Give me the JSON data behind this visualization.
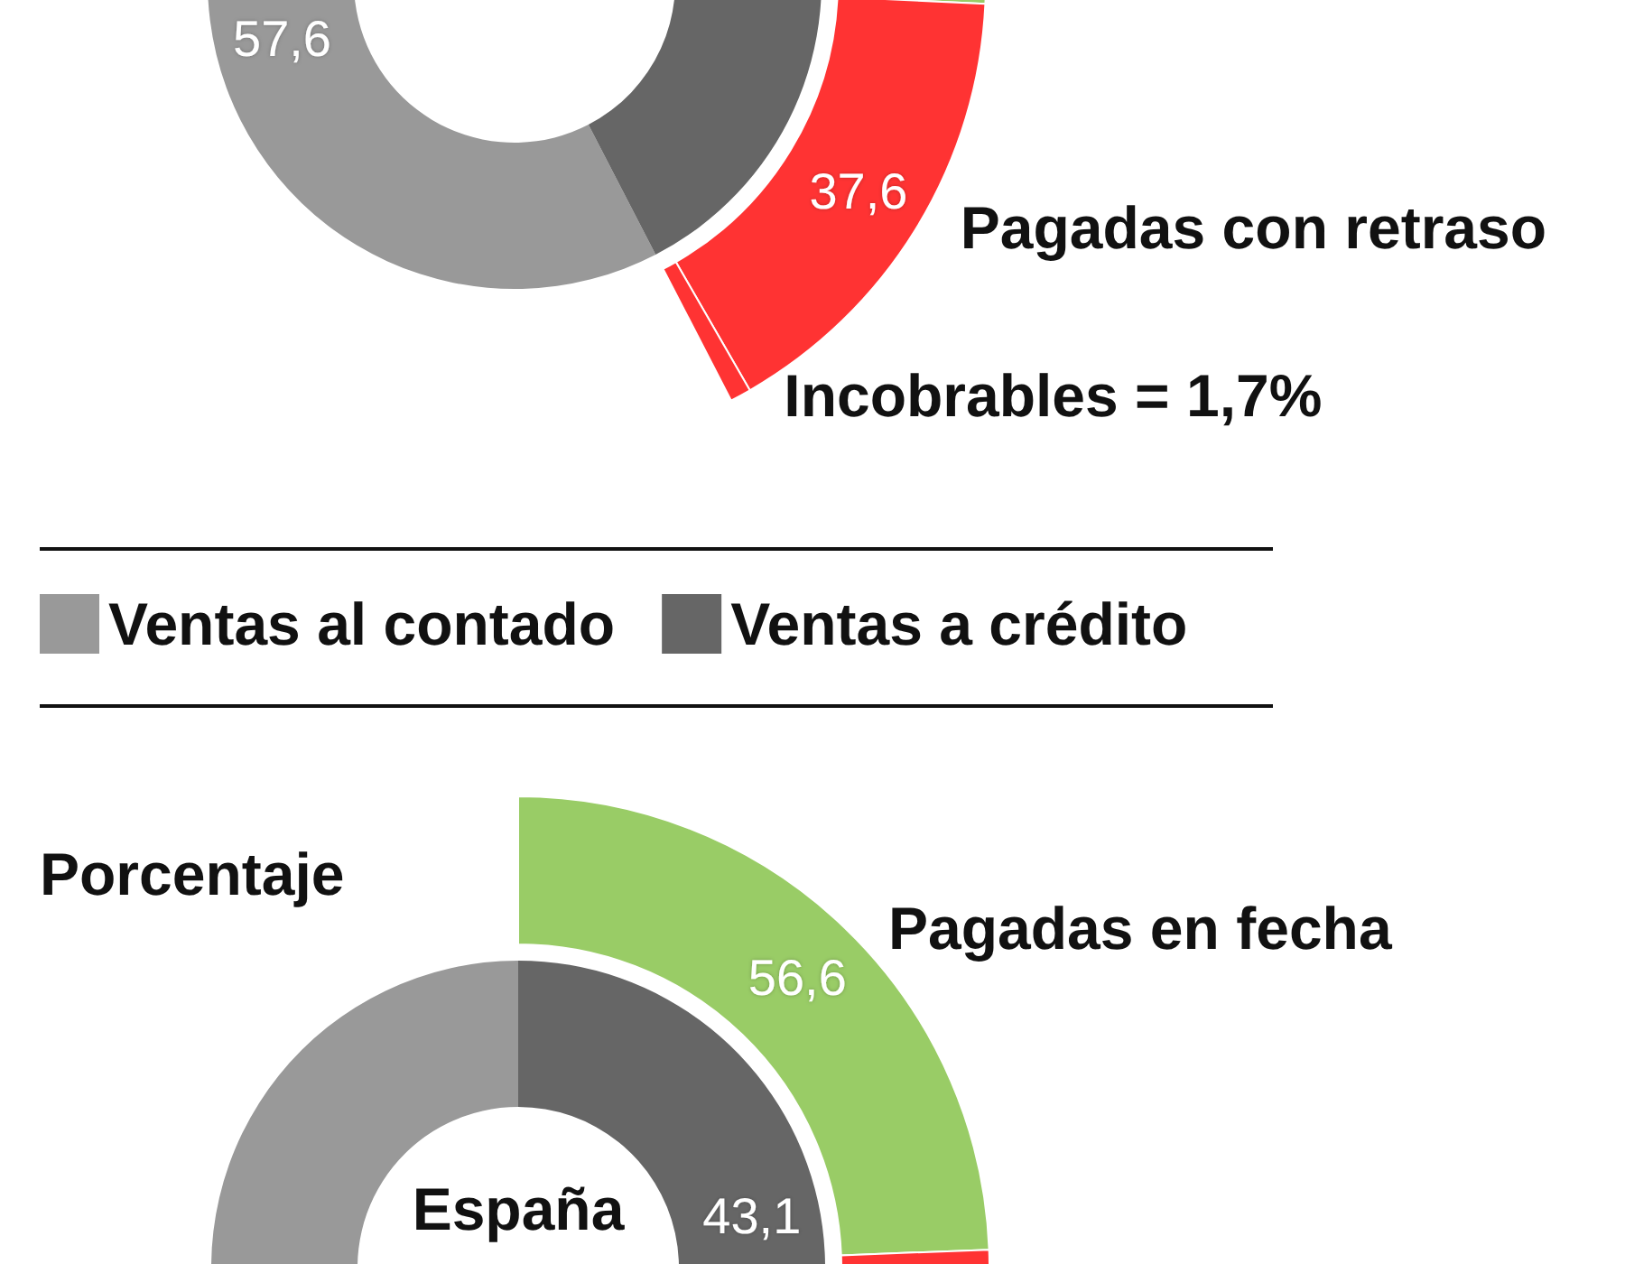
{
  "chart_data": [
    {
      "type": "donut",
      "categories": [
        "Ventas al contado",
        "Ventas a crédito"
      ],
      "colors": [
        "#999999",
        "#666666"
      ],
      "legend": "center",
      "annotations": [
        "Porcentaje"
      ],
      "series": [
        {
          "values": [
            57.6,
            42.4
          ],
          "value_labels": [
            "57,6",
            null
          ]
        },
        {
          "name": "España",
          "values": [
            56.9,
            43.1
          ],
          "value_labels": [
            null,
            "43,1"
          ]
        }
      ]
    },
    {
      "type": "donut",
      "categories": [
        null,
        "Pagadas con retraso",
        "Incobrables = 1,7%"
      ],
      "values": [
        60.7,
        37.6,
        1.7
      ],
      "colors": [
        "#99cc66",
        "#ff3333",
        "#ff3333"
      ],
      "value_labels": [
        null,
        "37,6",
        null
      ]
    },
    {
      "type": "donut",
      "categories": [
        "Pagadas en fecha",
        null
      ],
      "values": [
        56.6,
        43.4
      ],
      "colors": [
        "#99cc66",
        "#ff3333"
      ],
      "value_labels": [
        "56,6",
        null
      ]
    }
  ]
}
